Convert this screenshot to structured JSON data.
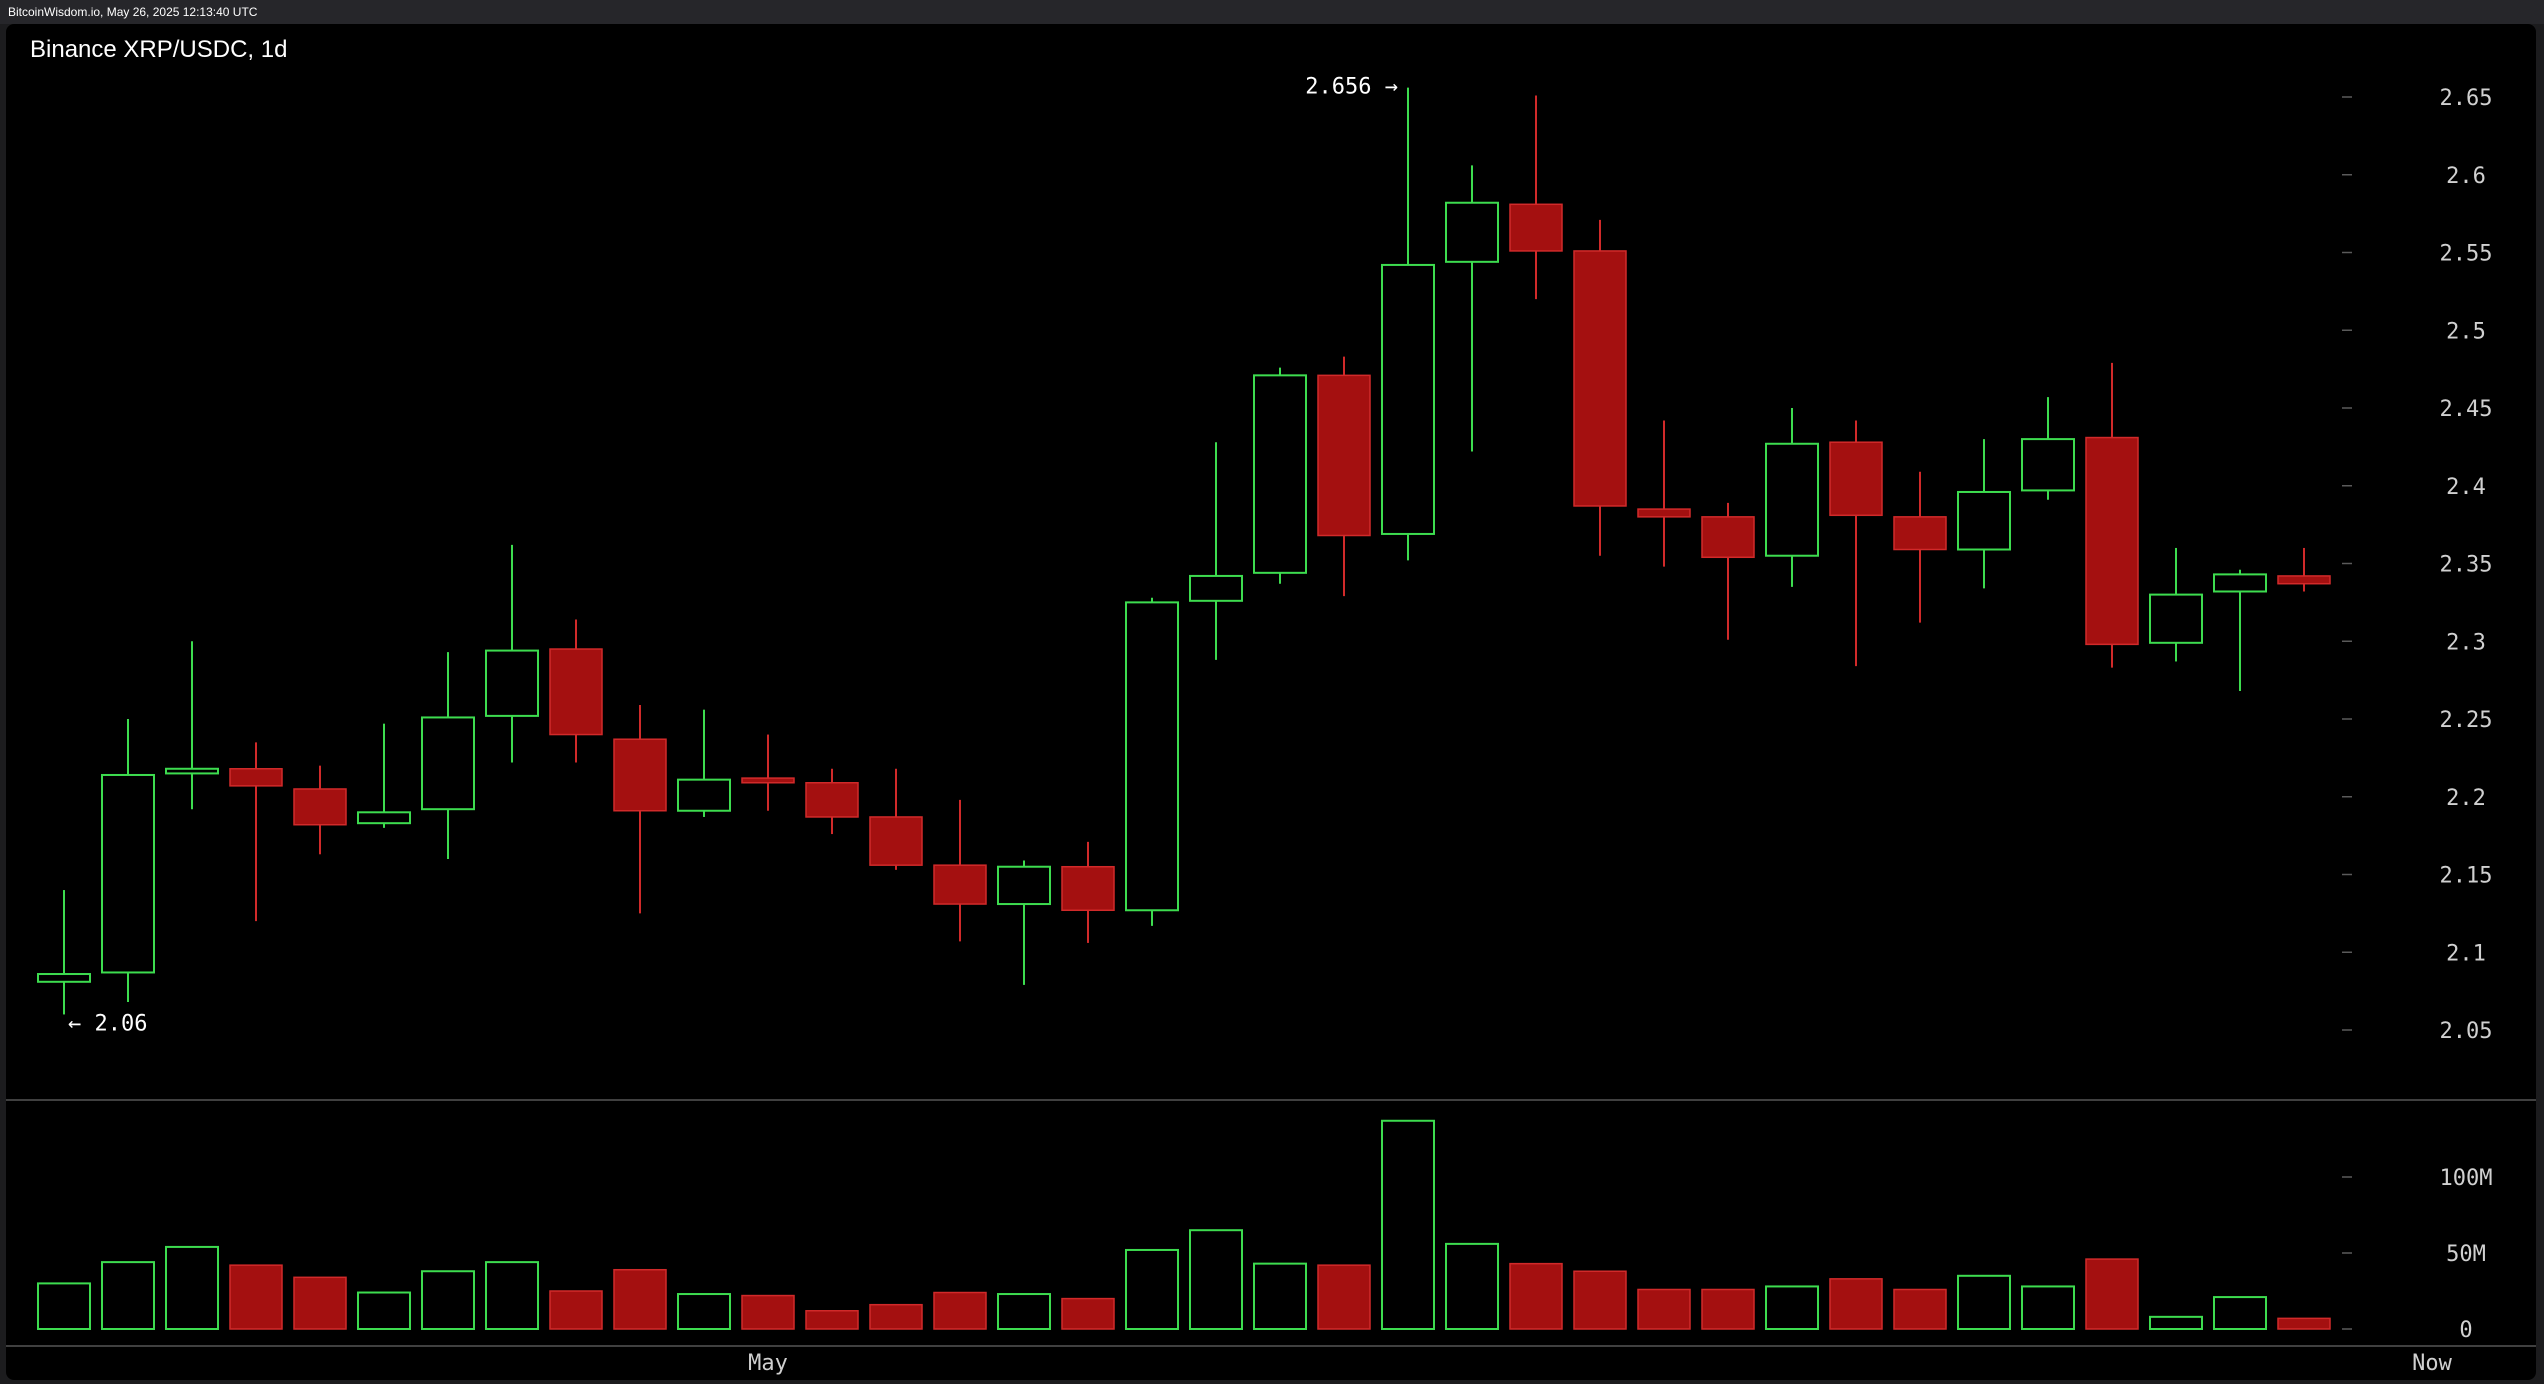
{
  "header": {
    "watermark": "BitcoinWisdom.io, May 26, 2025 12:13:40 UTC",
    "title": "Binance XRP/USDC, 1d"
  },
  "colors": {
    "up": "#3ddc4f",
    "down": "#a41010",
    "down_outline": "#d12a2a",
    "background": "#000000",
    "grid_tick": "#5a5a5a",
    "separator": "#555555"
  },
  "annotations": {
    "high_label": "2.656 →",
    "low_label": "← 2.06"
  },
  "chart_data": [
    {
      "type": "candlestick",
      "title": "Binance XRP/USDC, 1d",
      "ylim": [
        2.02,
        2.68
      ],
      "yticks": [
        2.05,
        2.1,
        2.15,
        2.2,
        2.25,
        2.3,
        2.35,
        2.4,
        2.45,
        2.5,
        2.55,
        2.6,
        2.65
      ],
      "ytick_labels": [
        "2.05",
        "2.1",
        "2.15",
        "2.2",
        "2.25",
        "2.3",
        "2.35",
        "2.4",
        "2.45",
        "2.5",
        "2.55",
        "2.6",
        "2.65"
      ],
      "xtick_labels": [
        {
          "label": "May",
          "index": 11
        },
        {
          "label": "Now",
          "index": 37
        }
      ],
      "high_marker": {
        "value": 2.656,
        "index": 21
      },
      "low_marker": {
        "value": 2.06,
        "index": 0
      },
      "candles": [
        {
          "open": 2.081,
          "high": 2.14,
          "low": 2.06,
          "close": 2.086
        },
        {
          "open": 2.087,
          "high": 2.25,
          "low": 2.068,
          "close": 2.214
        },
        {
          "open": 2.215,
          "high": 2.3,
          "low": 2.192,
          "close": 2.218
        },
        {
          "open": 2.218,
          "high": 2.235,
          "low": 2.12,
          "close": 2.207
        },
        {
          "open": 2.205,
          "high": 2.22,
          "low": 2.163,
          "close": 2.182
        },
        {
          "open": 2.183,
          "high": 2.247,
          "low": 2.18,
          "close": 2.19
        },
        {
          "open": 2.192,
          "high": 2.293,
          "low": 2.16,
          "close": 2.251
        },
        {
          "open": 2.252,
          "high": 2.362,
          "low": 2.222,
          "close": 2.294
        },
        {
          "open": 2.295,
          "high": 2.314,
          "low": 2.222,
          "close": 2.24
        },
        {
          "open": 2.237,
          "high": 2.259,
          "low": 2.125,
          "close": 2.191
        },
        {
          "open": 2.191,
          "high": 2.256,
          "low": 2.187,
          "close": 2.211
        },
        {
          "open": 2.212,
          "high": 2.24,
          "low": 2.191,
          "close": 2.209
        },
        {
          "open": 2.209,
          "high": 2.218,
          "low": 2.176,
          "close": 2.187
        },
        {
          "open": 2.187,
          "high": 2.218,
          "low": 2.153,
          "close": 2.156
        },
        {
          "open": 2.156,
          "high": 2.198,
          "low": 2.107,
          "close": 2.131
        },
        {
          "open": 2.131,
          "high": 2.159,
          "low": 2.079,
          "close": 2.155
        },
        {
          "open": 2.155,
          "high": 2.171,
          "low": 2.106,
          "close": 2.127
        },
        {
          "open": 2.127,
          "high": 2.328,
          "low": 2.117,
          "close": 2.325
        },
        {
          "open": 2.326,
          "high": 2.428,
          "low": 2.288,
          "close": 2.342
        },
        {
          "open": 2.344,
          "high": 2.476,
          "low": 2.337,
          "close": 2.471
        },
        {
          "open": 2.471,
          "high": 2.483,
          "low": 2.329,
          "close": 2.368
        },
        {
          "open": 2.369,
          "high": 2.656,
          "low": 2.352,
          "close": 2.542
        },
        {
          "open": 2.544,
          "high": 2.606,
          "low": 2.422,
          "close": 2.582
        },
        {
          "open": 2.581,
          "high": 2.651,
          "low": 2.52,
          "close": 2.551
        },
        {
          "open": 2.551,
          "high": 2.571,
          "low": 2.355,
          "close": 2.387
        },
        {
          "open": 2.385,
          "high": 2.442,
          "low": 2.348,
          "close": 2.38
        },
        {
          "open": 2.38,
          "high": 2.389,
          "low": 2.301,
          "close": 2.354
        },
        {
          "open": 2.355,
          "high": 2.45,
          "low": 2.335,
          "close": 2.427
        },
        {
          "open": 2.428,
          "high": 2.442,
          "low": 2.284,
          "close": 2.381
        },
        {
          "open": 2.38,
          "high": 2.409,
          "low": 2.312,
          "close": 2.359
        },
        {
          "open": 2.359,
          "high": 2.43,
          "low": 2.334,
          "close": 2.396
        },
        {
          "open": 2.397,
          "high": 2.457,
          "low": 2.391,
          "close": 2.43
        },
        {
          "open": 2.431,
          "high": 2.479,
          "low": 2.283,
          "close": 2.298
        },
        {
          "open": 2.299,
          "high": 2.36,
          "low": 2.287,
          "close": 2.33
        },
        {
          "open": 2.332,
          "high": 2.346,
          "low": 2.268,
          "close": 2.343
        },
        {
          "open": 2.342,
          "high": 2.36,
          "low": 2.332,
          "close": 2.337
        }
      ]
    },
    {
      "type": "bar",
      "title": "",
      "ylim": [
        0,
        140
      ],
      "unit": "M",
      "yticks": [
        0,
        50,
        100
      ],
      "ytick_labels": [
        "0",
        "50M",
        "100M"
      ],
      "values": [
        30,
        44,
        54,
        42,
        34,
        24,
        38,
        44,
        25,
        39,
        23,
        22,
        12,
        16,
        24,
        23,
        20,
        52,
        65,
        43,
        42,
        137,
        56,
        43,
        38,
        26,
        26,
        28,
        33,
        26,
        35,
        28,
        46,
        8,
        21,
        7
      ],
      "directions": [
        "up",
        "up",
        "up",
        "down",
        "down",
        "up",
        "up",
        "up",
        "down",
        "down",
        "up",
        "down",
        "down",
        "down",
        "down",
        "up",
        "down",
        "up",
        "up",
        "up",
        "down",
        "up",
        "up",
        "down",
        "down",
        "down",
        "down",
        "up",
        "down",
        "down",
        "up",
        "up",
        "down",
        "up",
        "up",
        "down"
      ]
    }
  ]
}
